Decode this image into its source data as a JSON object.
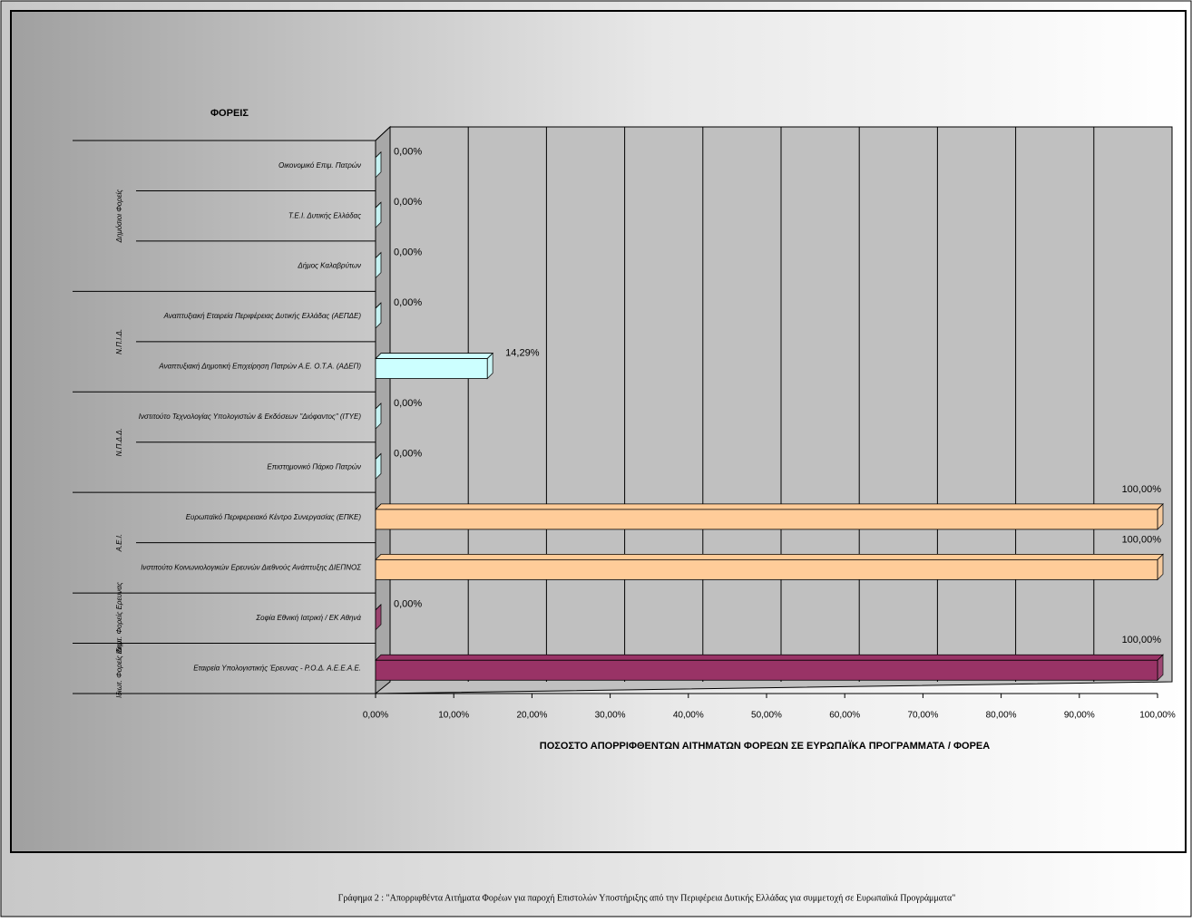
{
  "chart_data": {
    "type": "bar3d",
    "header": "ΦΟΡΕΙΣ",
    "x_label": "ΠΟΣΟΣΤΟ ΑΠΟΡΡΙΦΘΕΝΤΩΝ ΑΙΤΗΜΑΤΩΝ ΦΟΡΕΩΝ ΣΕ ΕΥΡΩΠΑΪΚΑ ΠΡΟΓΡΑΜΜΑΤΑ / ΦΟΡΕΑ",
    "caption": "Γράφημα 2 : \"Απορριφθέντα Αιτήματα Φορέων για παροχή Επιστολών Υποστήριξης από την Περιφέρεια Δυτικής Ελλάδας για συμμετοχή σε Ευρωπαϊκά Προγράμματα\"",
    "groups": [
      {
        "name": "Δημόσιοι Φορείς",
        "categories": [
          "Οικονομικό Επιμ. Πατρών",
          "Τ.Ε.Ι. Δυτικής Ελλάδας",
          "Δήμος Καλαβρύτων"
        ]
      },
      {
        "name": "Ν.Π.Ι.Δ.",
        "categories": [
          "Αναπτυξιακή Εταιρεία Περιφέρειας Δυτικής Ελλάδας (ΑΕΠΔΕ)",
          "Αναπτυξιακή Δημοτική Επιχείρηση Πατρών Α.Ε. Ο.Τ.Α. (ΑΔΕΠ)"
        ]
      },
      {
        "name": "Ν.Π.Δ.Δ.",
        "categories": [
          "Ινστιτούτο Τεχνολογίας Υπολογιστών & Εκδόσεων \"Διόφαντος\" (ΙΤΥΕ)",
          "Επιστημονικό Πάρκο Πατρών"
        ]
      },
      {
        "name": "Α.Ε.Ι.",
        "categories": [
          "Ευρωπαϊκό Περιφερειακό Κέντρο Συνεργασίας (ΕΠΚΕ)",
          "Ινστιτούτο Κοινωνιολογικών Ερευνών Διεθνούς Ανάπτυξης ΔΙΕΠΝΟΣ"
        ]
      },
      {
        "name": "Ιδιωτ. Φορείς Ερευνας",
        "categories": [
          "Σοφία Εθνική Ιατρική / ΕΚ Αθηνά"
        ]
      },
      {
        "name": "Ιδιωτ. Φορείς Δημ.",
        "categories": [
          "Εταιρεία Υπολογιστικής Έρευνας - Ρ.Ο.Δ. Α.Ε.Ε.Α.Ε."
        ]
      }
    ],
    "values": [
      0,
      0,
      0,
      0,
      14.29,
      0,
      0,
      100,
      100,
      0,
      100
    ],
    "value_labels": [
      "0,00%",
      "0,00%",
      "0,00%",
      "0,00%",
      "14,29%",
      "0,00%",
      "0,00%",
      "100,00%",
      "100,00%",
      "0,00%",
      "100,00%"
    ],
    "colors": [
      "#ccffff",
      "#ccffff",
      "#ccffff",
      "#ccffff",
      "#ccffff",
      "#ccffff",
      "#ccffff",
      "#ffcc99",
      "#ffcc99",
      "#993366",
      "#993366"
    ],
    "xlim": [
      0,
      100
    ],
    "xticks": [
      {
        "value": 0,
        "label": "0,00%"
      },
      {
        "value": 10,
        "label": "10,00%"
      },
      {
        "value": 20,
        "label": "20,00%"
      },
      {
        "value": 30,
        "label": "30,00%"
      },
      {
        "value": 40,
        "label": "40,00%"
      },
      {
        "value": 50,
        "label": "50,00%"
      },
      {
        "value": 60,
        "label": "60,00%"
      },
      {
        "value": 70,
        "label": "70,00%"
      },
      {
        "value": 80,
        "label": "80,00%"
      },
      {
        "value": 90,
        "label": "90,00%"
      },
      {
        "value": 100,
        "label": "100,00%"
      }
    ],
    "grid": true
  }
}
